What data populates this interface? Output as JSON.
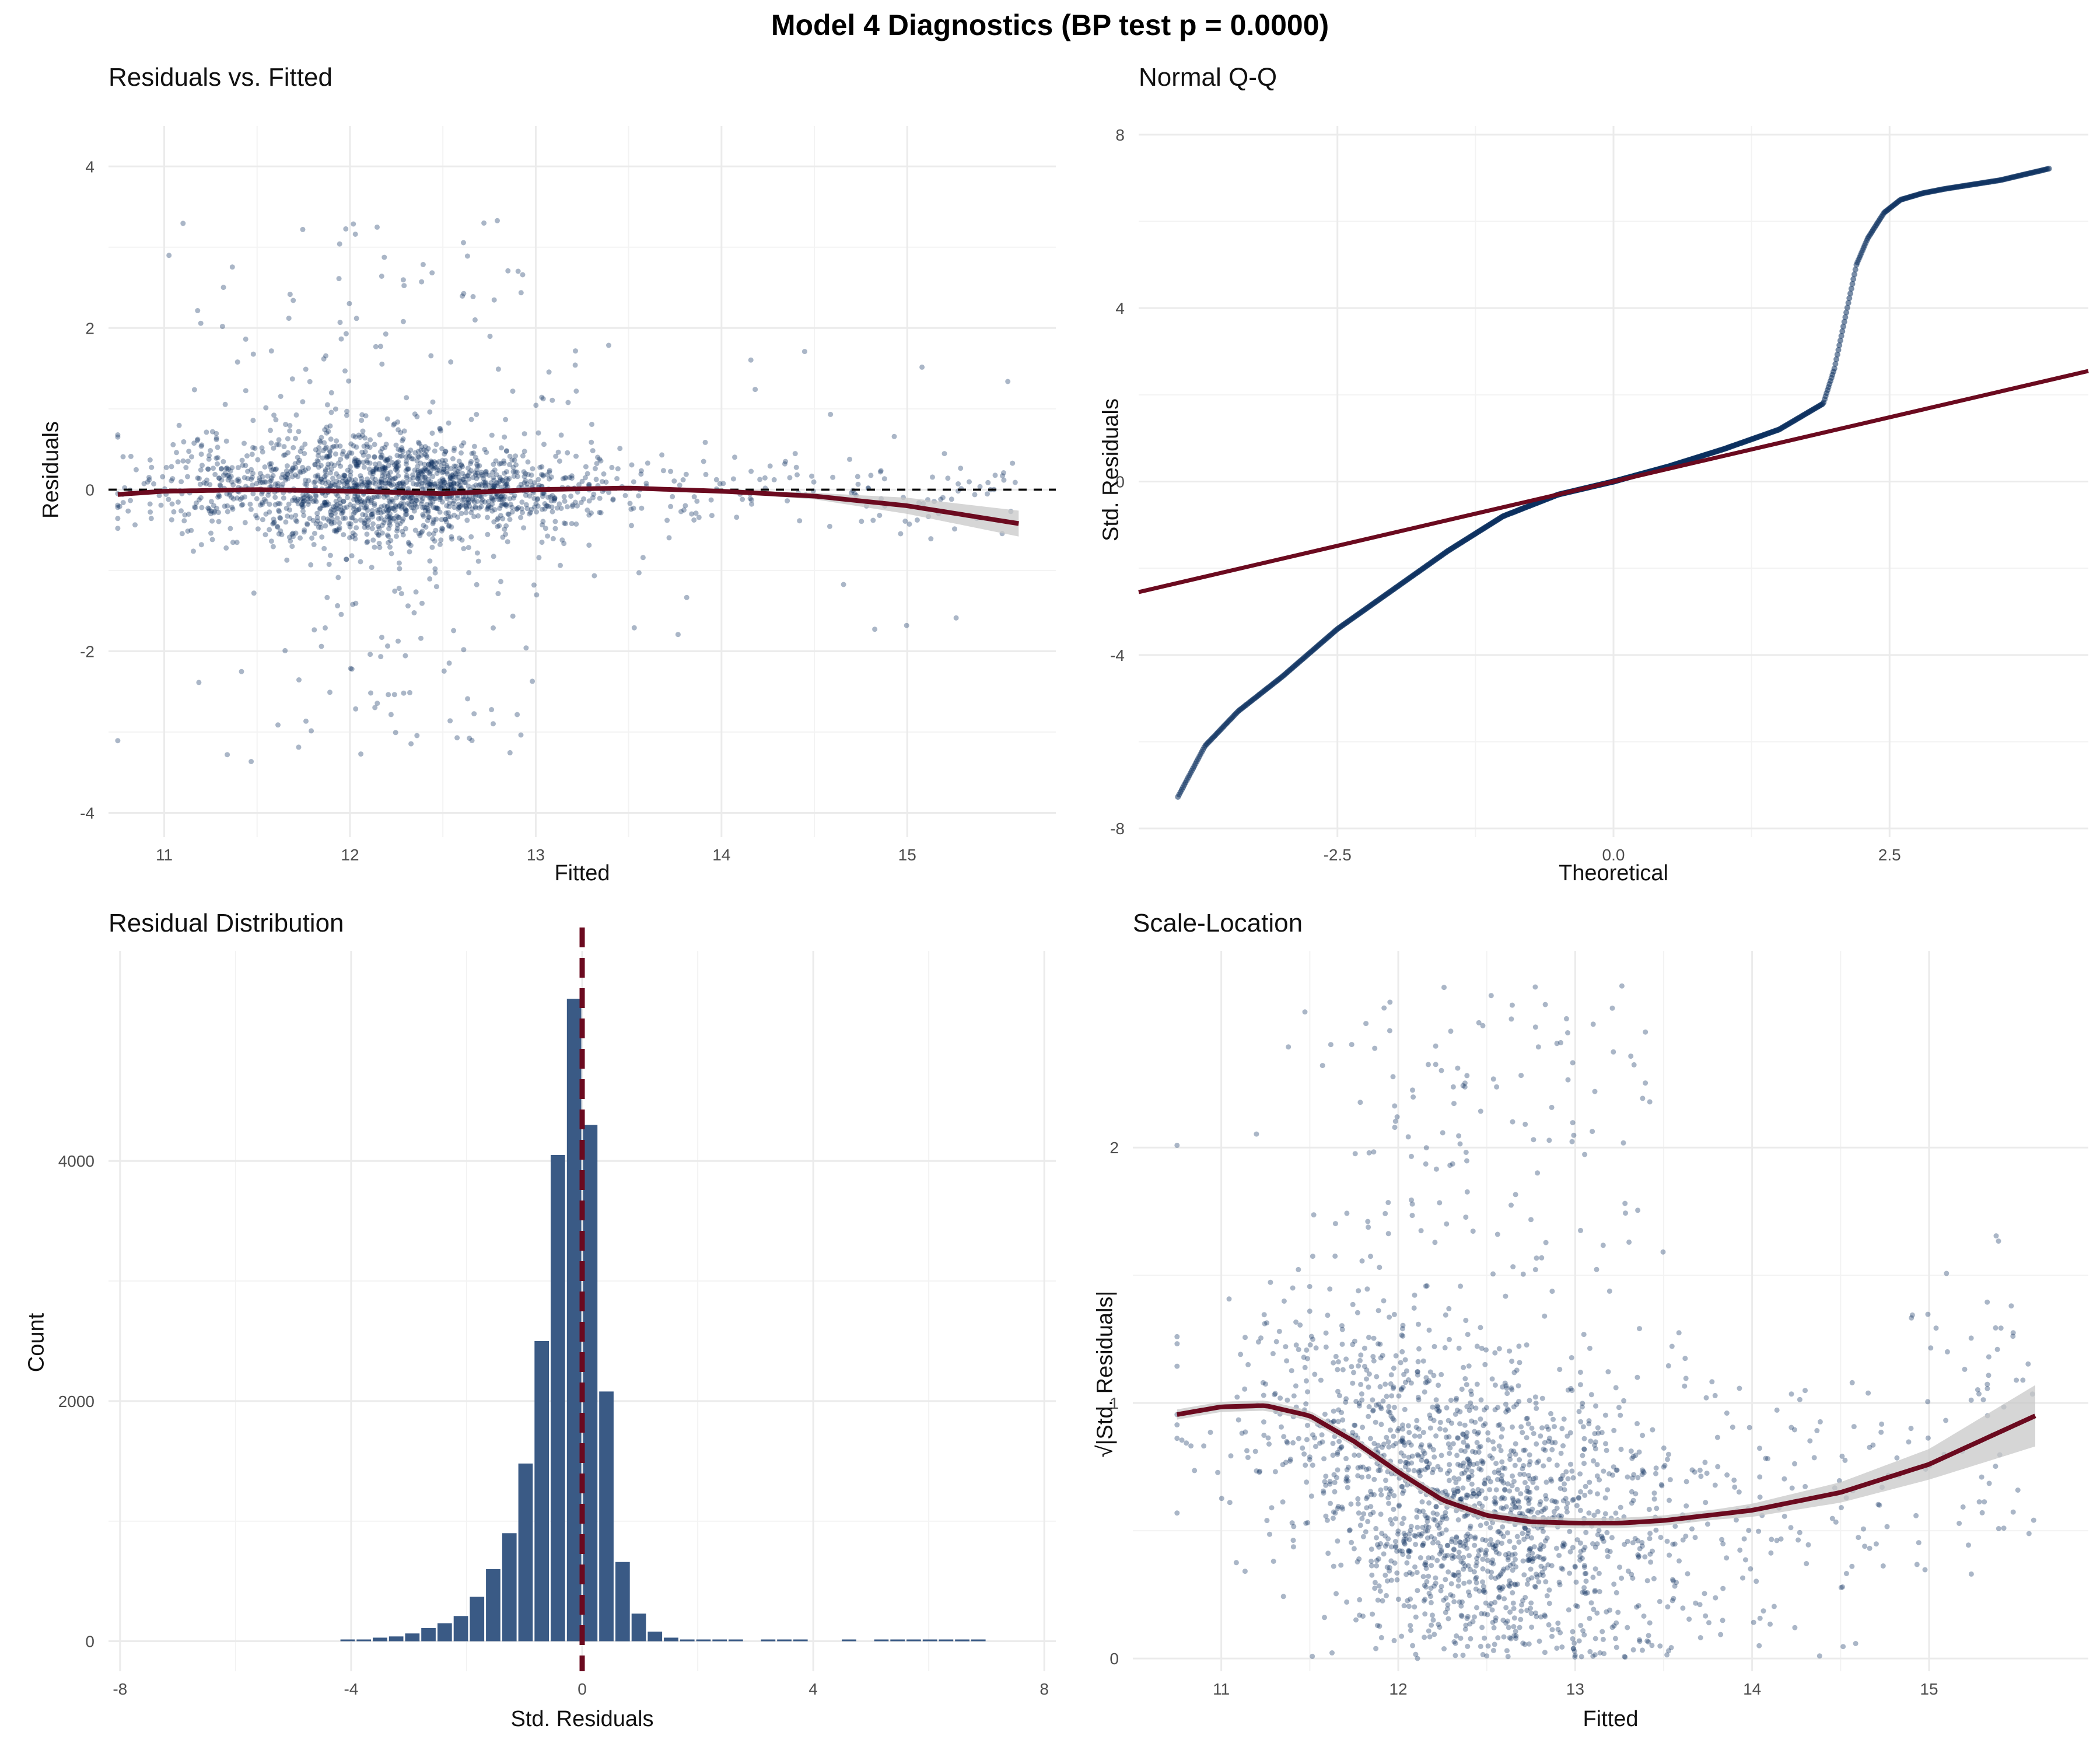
{
  "suptitle": "Model 4 Diagnostics (BP test p = 0.0000)",
  "colors": {
    "points": "#0b2f5f",
    "fit": "#6b0a1f",
    "band": "#c8c8c8",
    "bars": "#3a5a85",
    "grid": "#ebebeb",
    "text": "#4d4d4d"
  },
  "chart_data": [
    {
      "type": "scatter",
      "title": "Residuals vs. Fitted",
      "xlabel": "Fitted",
      "ylabel": "Residuals",
      "xlim": [
        10.7,
        15.8
      ],
      "ylim": [
        -4.3,
        4.5
      ],
      "xticks": [
        11,
        12,
        13,
        14,
        15
      ],
      "yticks": [
        -4,
        -2,
        0,
        2,
        4
      ],
      "hline": 0,
      "point_cloud": {
        "n_points": 2000,
        "x_center": 12.2,
        "x_range": [
          10.75,
          15.6
        ],
        "residual_sd_core": 0.35,
        "y_range": [
          -4.0,
          4.05
        ]
      },
      "smooth": {
        "x": [
          10.75,
          11.0,
          11.5,
          12.0,
          12.5,
          13.0,
          13.5,
          14.0,
          14.5,
          15.0,
          15.6
        ],
        "y": [
          -0.06,
          -0.02,
          0.0,
          -0.02,
          -0.05,
          0.0,
          0.02,
          -0.02,
          -0.08,
          -0.2,
          -0.42
        ]
      },
      "band_halfwidth": {
        "x": [
          10.75,
          14.0,
          14.5,
          15.0,
          15.6
        ],
        "y": [
          0.02,
          0.02,
          0.04,
          0.1,
          0.16
        ]
      }
    },
    {
      "type": "scatter",
      "title": "Normal Q-Q",
      "xlabel": "Theoretical",
      "ylabel": "Std. Residuals",
      "xlim": [
        -4.3,
        4.3
      ],
      "ylim": [
        -8.2,
        8.2
      ],
      "xticks": [
        -2.5,
        0.0,
        2.5
      ],
      "xtick_labels": [
        "-2.5",
        "0.0",
        "2.5"
      ],
      "yticks": [
        -8,
        -4,
        0,
        4,
        8
      ],
      "qq_curve": {
        "x": [
          -3.95,
          -3.7,
          -3.4,
          -3.0,
          -2.5,
          -2.0,
          -1.5,
          -1.0,
          -0.5,
          0.0,
          0.5,
          1.0,
          1.5,
          1.9,
          2.0,
          2.1,
          2.2,
          2.3,
          2.45,
          2.6,
          2.8,
          3.0,
          3.5,
          4.0
        ],
        "y": [
          -7.3,
          -6.1,
          -5.3,
          -4.5,
          -3.4,
          -2.5,
          -1.6,
          -0.8,
          -0.3,
          0.0,
          0.35,
          0.75,
          1.2,
          1.8,
          2.6,
          3.8,
          5.0,
          5.6,
          6.2,
          6.5,
          6.65,
          6.75,
          6.95,
          7.25
        ]
      },
      "reference_line": {
        "x": [
          -4.3,
          4.3
        ],
        "y": [
          -2.55,
          2.55
        ]
      }
    },
    {
      "type": "bar",
      "title": "Residual Distribution",
      "xlabel": "Std. Residuals",
      "ylabel": "Count",
      "xlim": [
        -8.2,
        8.2
      ],
      "ylim": [
        -250,
        5750
      ],
      "xticks": [
        -8,
        -4,
        0,
        4,
        8
      ],
      "yticks": [
        0,
        2000,
        4000
      ],
      "vline": 0,
      "bin_width": 0.28,
      "bin_centers": [
        -4.06,
        -3.78,
        -3.5,
        -3.22,
        -2.94,
        -2.66,
        -2.38,
        -2.1,
        -1.82,
        -1.54,
        -1.26,
        -0.98,
        -0.7,
        -0.42,
        -0.14,
        0.14,
        0.42,
        0.7,
        0.98,
        1.26,
        1.54,
        1.82,
        2.1,
        2.38,
        2.66,
        3.22,
        3.5,
        3.78,
        4.62,
        5.18,
        5.46,
        5.74,
        6.02,
        6.3,
        6.58,
        6.86
      ],
      "counts": [
        5,
        10,
        30,
        40,
        65,
        110,
        150,
        210,
        370,
        600,
        900,
        1480,
        2500,
        4050,
        5350,
        4300,
        2080,
        660,
        230,
        80,
        30,
        15,
        10,
        3,
        5,
        15,
        10,
        10,
        5,
        5,
        5,
        8,
        10,
        12,
        15,
        8
      ]
    },
    {
      "type": "scatter",
      "title": "Scale-Location",
      "xlabel": "Fitted",
      "ylabel": "√|Std. Residuals|",
      "xlim": [
        10.5,
        15.9
      ],
      "ylim": [
        -0.05,
        2.77
      ],
      "xticks": [
        11,
        12,
        13,
        14,
        15
      ],
      "yticks": [
        0,
        1,
        2
      ],
      "point_cloud": {
        "n_points": 2000,
        "x_center": 12.4,
        "x_range": [
          10.75,
          15.6
        ],
        "y_range": [
          0.0,
          2.7
        ]
      },
      "smooth": {
        "x": [
          10.75,
          11.0,
          11.25,
          11.5,
          11.75,
          12.0,
          12.25,
          12.5,
          12.75,
          13.0,
          13.25,
          13.5,
          14.0,
          14.5,
          15.0,
          15.6
        ],
        "y": [
          0.955,
          0.985,
          0.99,
          0.95,
          0.85,
          0.73,
          0.62,
          0.56,
          0.535,
          0.53,
          0.53,
          0.54,
          0.58,
          0.65,
          0.76,
          0.95
        ]
      },
      "band_halfwidth": {
        "x": [
          10.75,
          13.8,
          14.5,
          15.0,
          15.6
        ],
        "y": [
          0.02,
          0.02,
          0.04,
          0.06,
          0.12
        ]
      }
    }
  ]
}
